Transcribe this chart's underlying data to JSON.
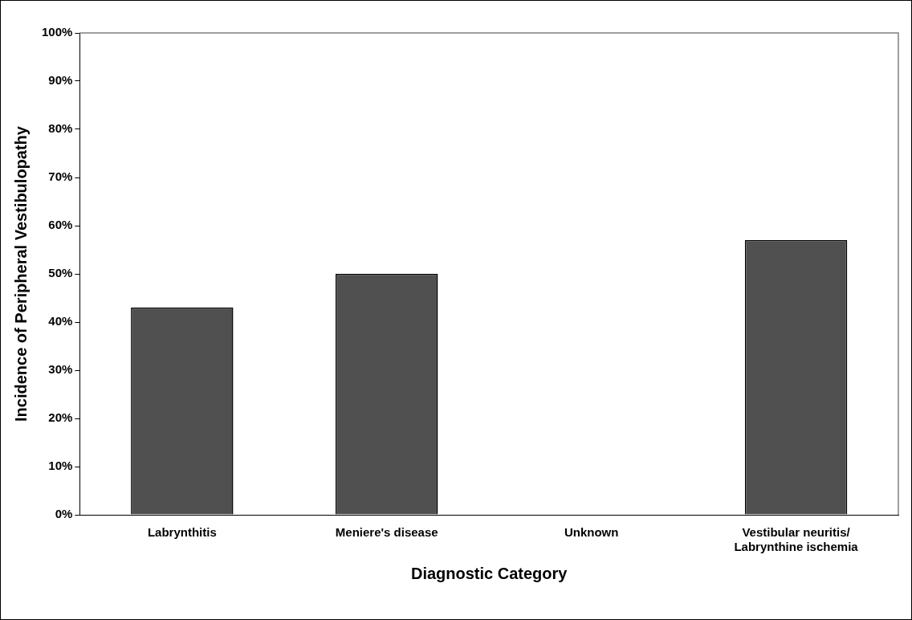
{
  "chart_data": {
    "type": "bar",
    "xlabel": "Diagnostic Category",
    "ylabel": "Incidence of Peripheral Vestibulopathy",
    "categories": [
      "Labrynthitis",
      "Meniere's disease",
      "Unknown",
      "Vestibular neuritis/Labrynthine ischemia"
    ],
    "values": [
      43,
      50,
      0,
      57
    ],
    "color": "#505050",
    "ylim": [
      0,
      100
    ],
    "yticks": [
      {
        "value": 0,
        "label": "0%"
      },
      {
        "value": 10,
        "label": "10%"
      },
      {
        "value": 20,
        "label": "20%"
      },
      {
        "value": 30,
        "label": "30%"
      },
      {
        "value": 40,
        "label": "40%"
      },
      {
        "value": 50,
        "label": "50%"
      },
      {
        "value": 60,
        "label": "60%"
      },
      {
        "value": 70,
        "label": "70%"
      },
      {
        "value": 80,
        "label": "80%"
      },
      {
        "value": 90,
        "label": "90%"
      },
      {
        "value": 100,
        "label": "100%"
      }
    ],
    "grid": false,
    "legend": false
  }
}
